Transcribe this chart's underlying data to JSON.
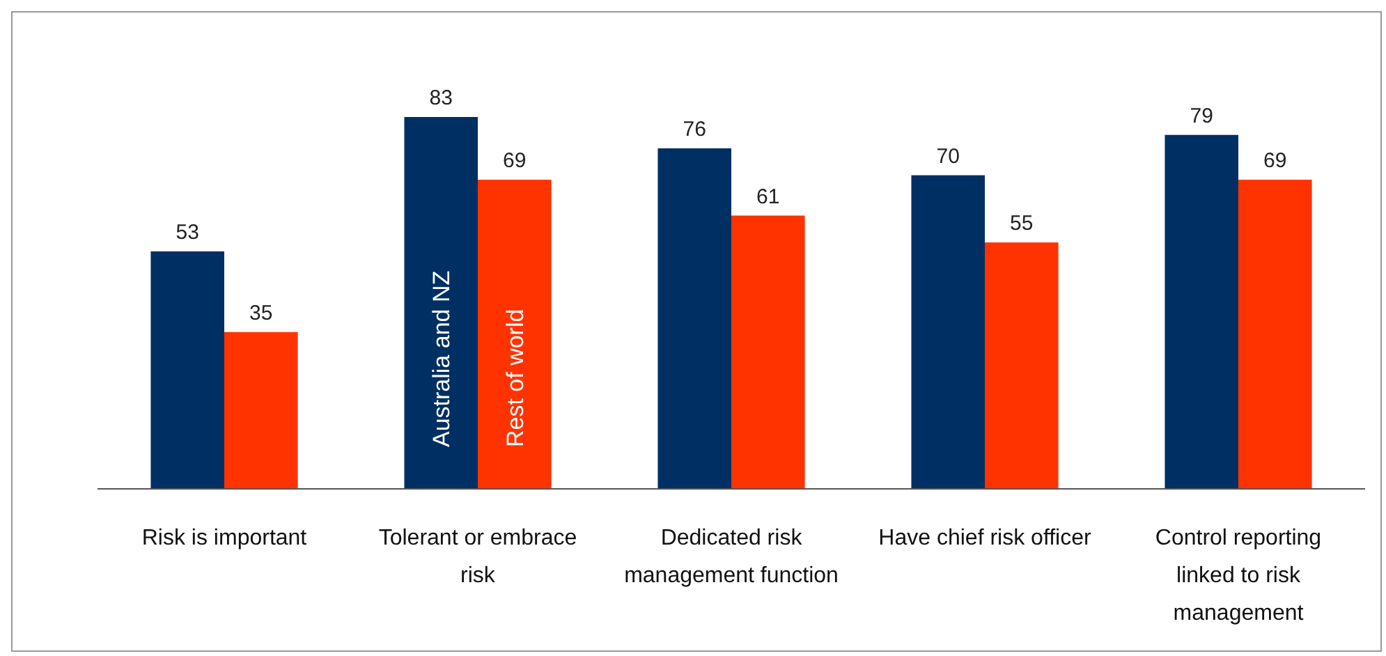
{
  "chart_data": {
    "type": "bar",
    "categories": [
      "Risk is important",
      "Tolerant or embrace risk",
      "Dedicated risk management function",
      "Have chief risk officer",
      "Control reporting linked to risk management"
    ],
    "series": [
      {
        "name": "Australia and NZ",
        "color": "#003063",
        "values": [
          53,
          83,
          76,
          70,
          79
        ]
      },
      {
        "name": "Rest of world",
        "color": "#ff3300",
        "values": [
          35,
          69,
          61,
          55,
          69
        ]
      }
    ],
    "data_labels": true
  }
}
